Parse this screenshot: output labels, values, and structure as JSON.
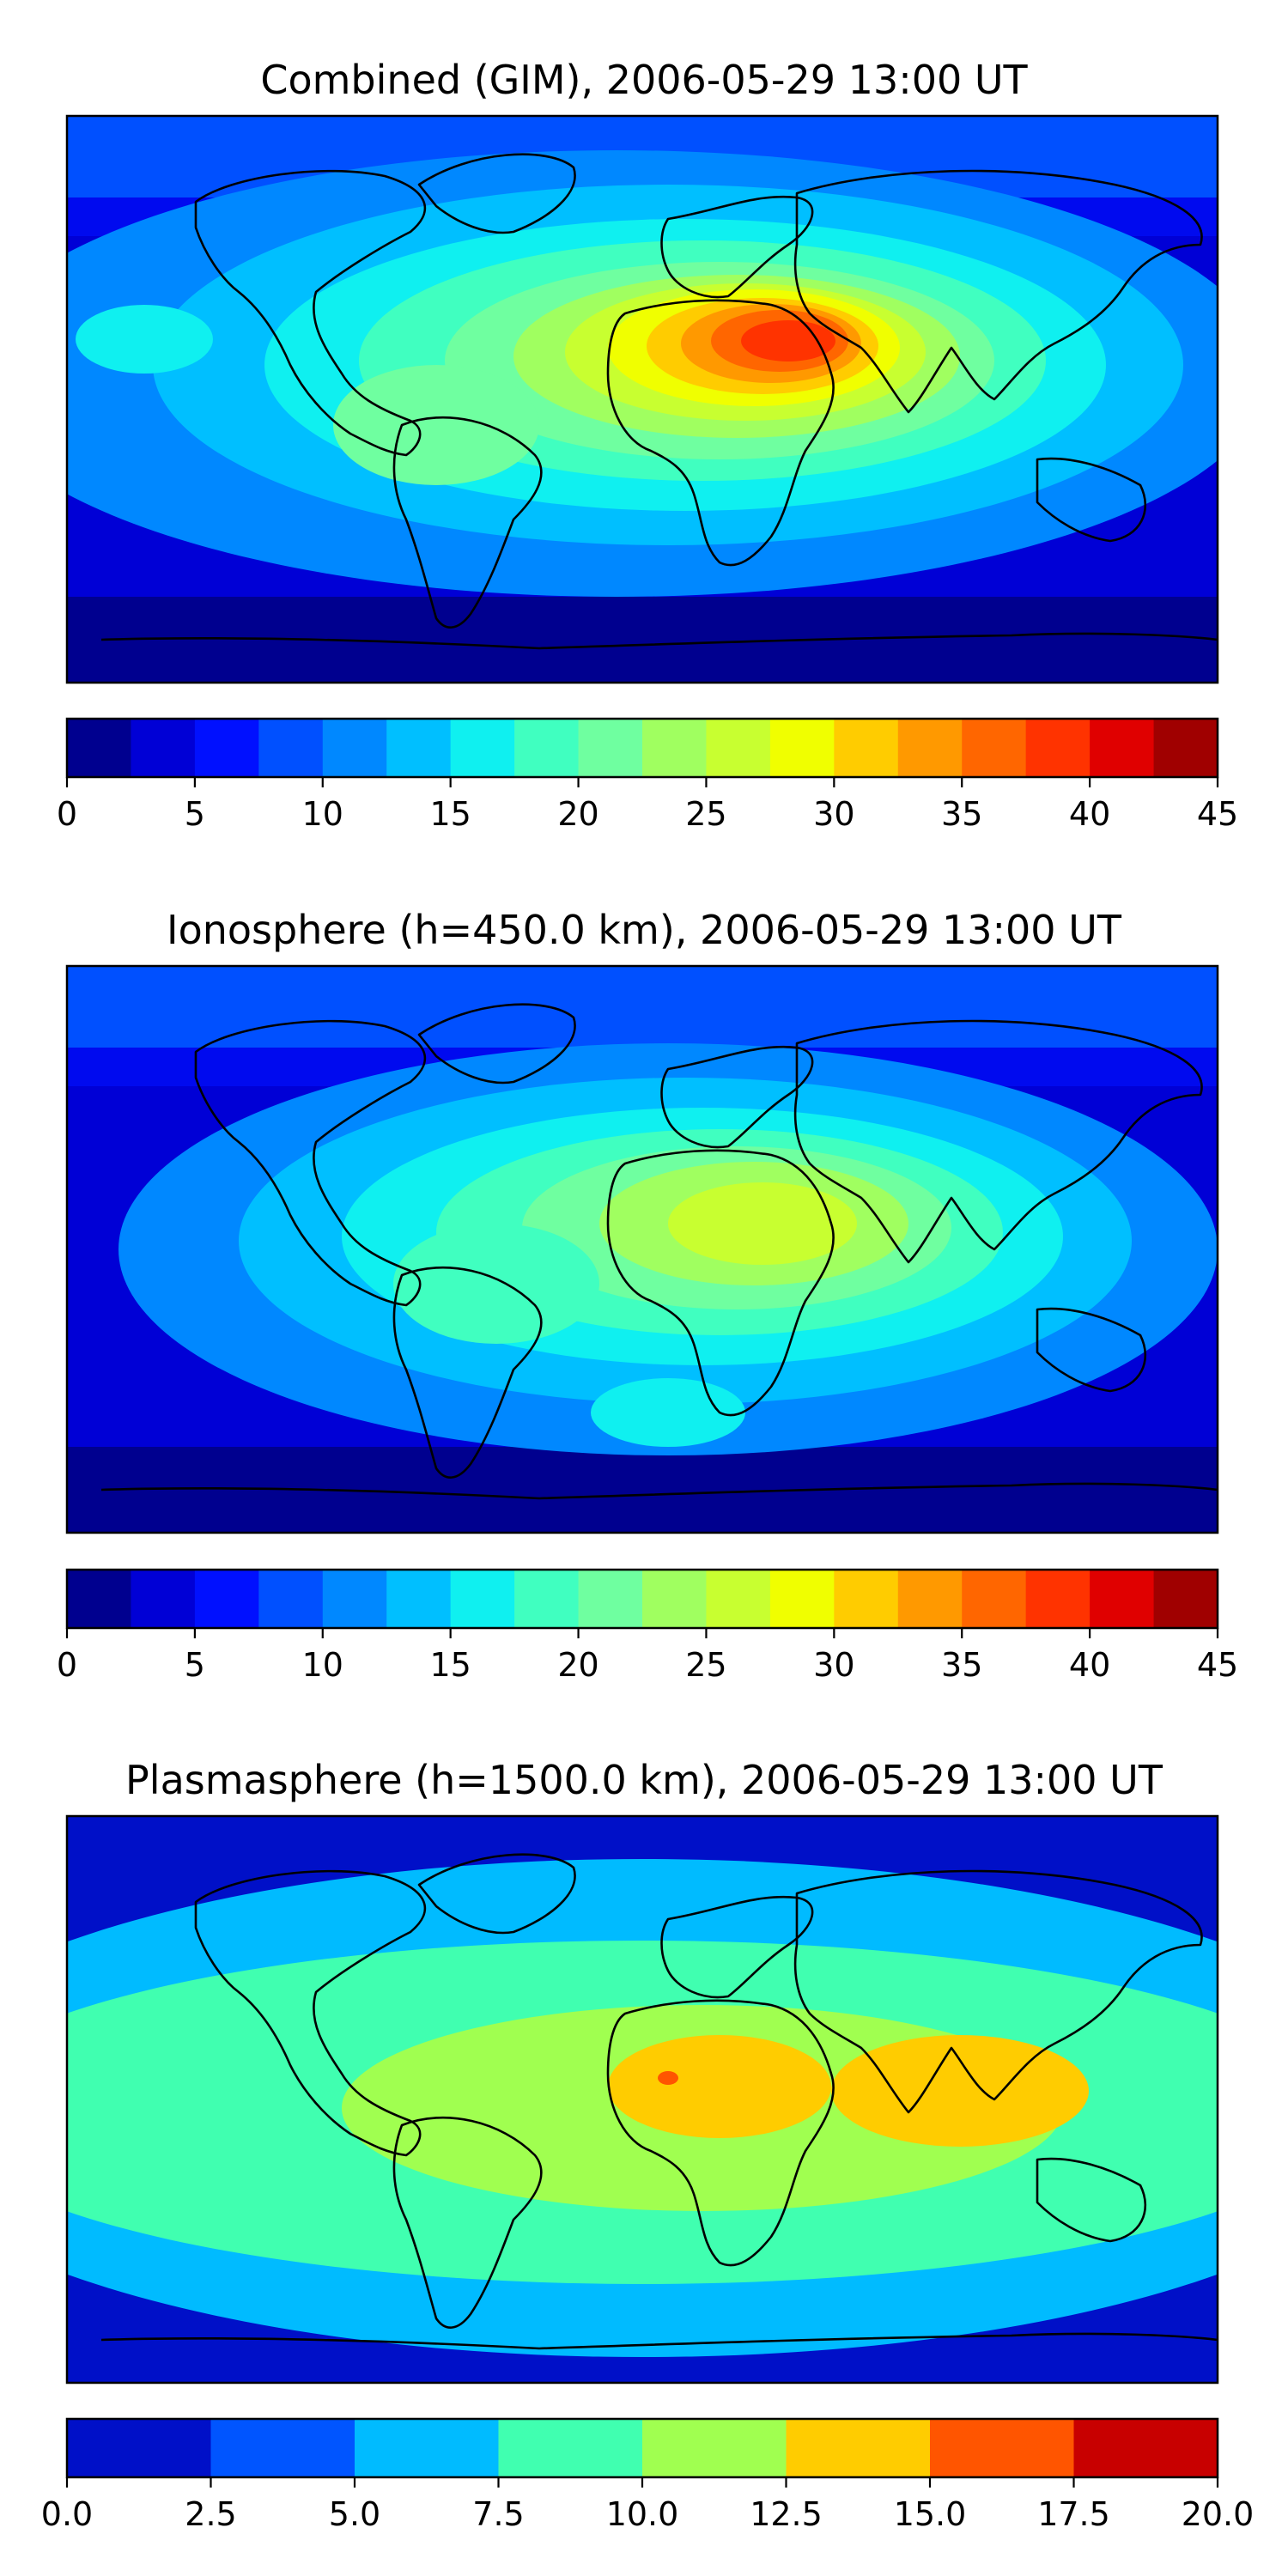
{
  "panels": [
    {
      "title": "Combined (GIM), 2006-05-29 13:00 UT",
      "field": "combined",
      "colorbar": {
        "ticks": [
          "0",
          "5",
          "10",
          "15",
          "20",
          "25",
          "30",
          "35",
          "40",
          "45"
        ],
        "colors": [
          "#00008f",
          "#0000d6",
          "#0010ff",
          "#0050ff",
          "#0088ff",
          "#00bfff",
          "#0ff0f0",
          "#40ffc0",
          "#6fffa0",
          "#a0ff60",
          "#c8ff30",
          "#f0ff00",
          "#ffcc00",
          "#ff9900",
          "#ff6600",
          "#ff3300",
          "#e00000",
          "#a00000"
        ]
      }
    },
    {
      "title": "Ionosphere  (h=450.0 km), 2006-05-29 13:00 UT",
      "field": "ionosphere",
      "colorbar": {
        "ticks": [
          "0",
          "5",
          "10",
          "15",
          "20",
          "25",
          "30",
          "35",
          "40",
          "45"
        ],
        "colors": [
          "#00008f",
          "#0000d6",
          "#0010ff",
          "#0050ff",
          "#0088ff",
          "#00bfff",
          "#0ff0f0",
          "#40ffc0",
          "#6fffa0",
          "#a0ff60",
          "#c8ff30",
          "#f0ff00",
          "#ffcc00",
          "#ff9900",
          "#ff6600",
          "#ff3300",
          "#e00000",
          "#a00000"
        ]
      }
    },
    {
      "title": "Plasmasphere (h=1500.0 km), 2006-05-29 13:00 UT",
      "field": "plasmasphere",
      "colorbar": {
        "ticks": [
          "0.0",
          "2.5",
          "5.0",
          "7.5",
          "10.0",
          "12.5",
          "15.0",
          "17.5",
          "20.0"
        ],
        "colors": [
          "#0010c8",
          "#0055ff",
          "#00bbff",
          "#40ffb0",
          "#a0ff50",
          "#ffcc00",
          "#ff5500",
          "#c80000"
        ]
      }
    }
  ]
}
